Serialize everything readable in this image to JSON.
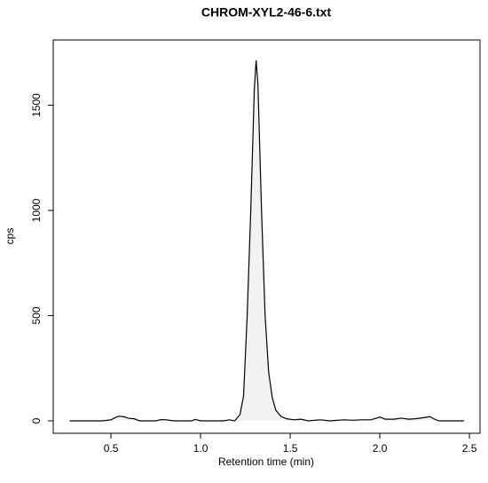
{
  "chart_data": {
    "type": "line",
    "title": "CHROM-XYL2-46-6.txt",
    "x_label": "Retention time (min)",
    "y_label": "cps",
    "series": [
      {
        "color": "#000000",
        "fill": "#f2f2f2",
        "x": [
          0.27,
          0.45,
          0.5,
          0.54,
          0.57,
          0.6,
          0.63,
          0.66,
          0.75,
          0.78,
          0.81,
          0.85,
          0.95,
          0.97,
          1.0,
          1.13,
          1.16,
          1.19,
          1.22,
          1.24,
          1.26,
          1.28,
          1.3,
          1.31,
          1.32,
          1.34,
          1.36,
          1.38,
          1.4,
          1.42,
          1.45,
          1.48,
          1.52,
          1.56,
          1.6,
          1.67,
          1.72,
          1.8,
          1.85,
          1.9,
          1.95,
          2.0,
          2.03,
          2.08,
          2.12,
          2.16,
          2.2,
          2.25,
          2.28,
          2.3,
          2.33,
          2.47
        ],
        "values": [
          0,
          0,
          5,
          22,
          20,
          12,
          10,
          0,
          0,
          6,
          5,
          0,
          0,
          7,
          0,
          0,
          5,
          0,
          30,
          120,
          500,
          1000,
          1580,
          1713,
          1600,
          1000,
          500,
          230,
          110,
          50,
          20,
          10,
          5,
          8,
          0,
          5,
          0,
          5,
          3,
          5,
          5,
          18,
          8,
          8,
          13,
          8,
          10,
          16,
          20,
          10,
          0,
          0
        ]
      }
    ],
    "xlim": [
      0.178,
      2.559
    ],
    "ylim": [
      -59,
      1810
    ],
    "xticks": [
      0.5,
      {
        "value": 1,
        "label": "1.0"
      },
      1.5,
      {
        "value": 2,
        "label": "2.0"
      },
      2.5
    ],
    "yticks": [
      0,
      500,
      1000,
      1500
    ],
    "grid": false
  }
}
